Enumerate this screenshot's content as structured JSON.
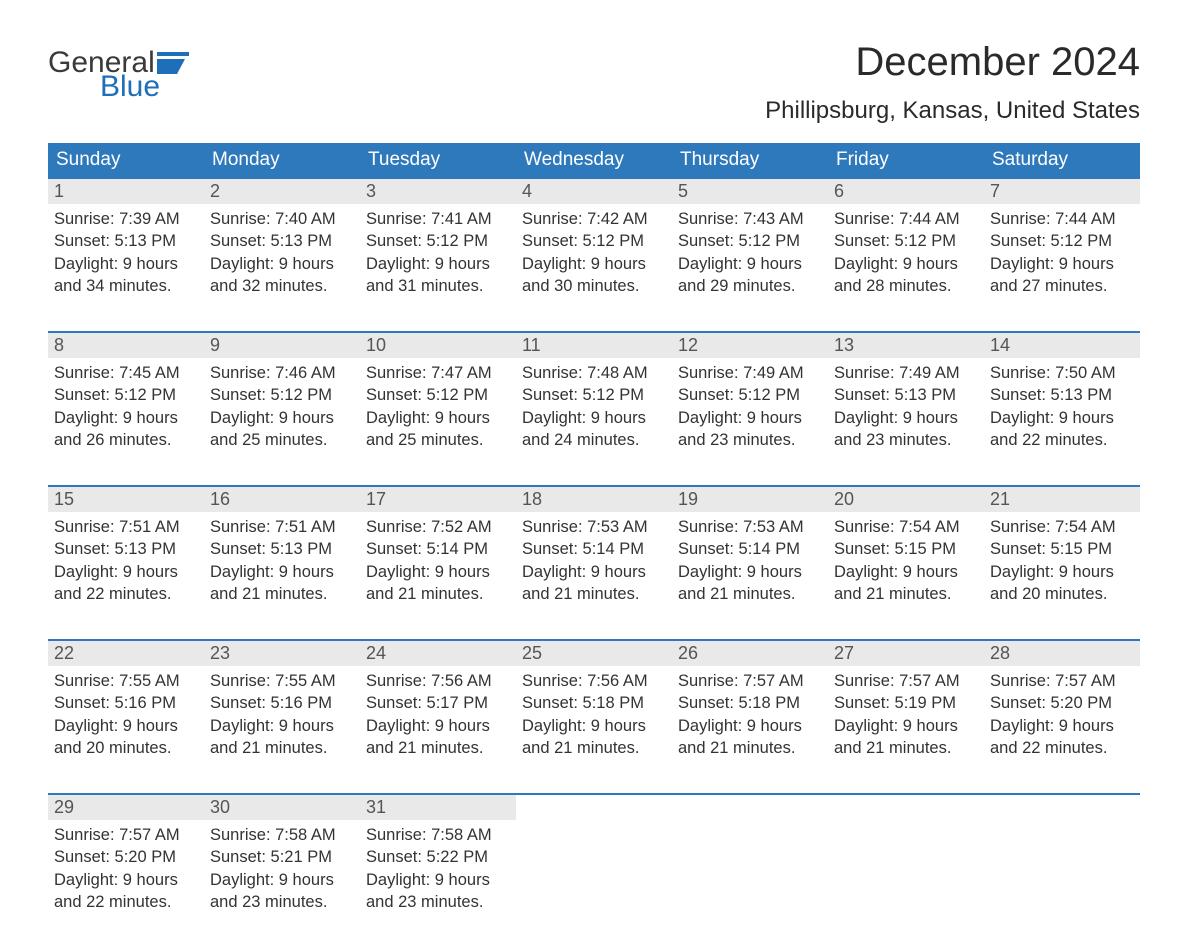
{
  "colors": {
    "header_bg": "#2e78bc",
    "header_text": "#ffffff",
    "daynum_bg": "#e9e9e9",
    "daynum_text": "#555555",
    "body_text": "#333333",
    "accent": "#1c6fb8",
    "page_bg": "#ffffff"
  },
  "typography": {
    "month_title_fontsize": 40,
    "location_fontsize": 24,
    "th_fontsize": 19,
    "daynum_fontsize": 18,
    "detail_fontsize": 16.5,
    "logo_fontsize": 30
  },
  "logo": {
    "line1": "General",
    "line2": "Blue"
  },
  "title": "December 2024",
  "location": "Phillipsburg, Kansas, United States",
  "weekdays": [
    "Sunday",
    "Monday",
    "Tuesday",
    "Wednesday",
    "Thursday",
    "Friday",
    "Saturday"
  ],
  "labels": {
    "sunrise": "Sunrise: ",
    "sunset": "Sunset: ",
    "daylight": "Daylight: "
  },
  "weeks": [
    [
      {
        "day": "1",
        "sunrise": "7:39 AM",
        "sunset": "5:13 PM",
        "daylight": "9 hours and 34 minutes."
      },
      {
        "day": "2",
        "sunrise": "7:40 AM",
        "sunset": "5:13 PM",
        "daylight": "9 hours and 32 minutes."
      },
      {
        "day": "3",
        "sunrise": "7:41 AM",
        "sunset": "5:12 PM",
        "daylight": "9 hours and 31 minutes."
      },
      {
        "day": "4",
        "sunrise": "7:42 AM",
        "sunset": "5:12 PM",
        "daylight": "9 hours and 30 minutes."
      },
      {
        "day": "5",
        "sunrise": "7:43 AM",
        "sunset": "5:12 PM",
        "daylight": "9 hours and 29 minutes."
      },
      {
        "day": "6",
        "sunrise": "7:44 AM",
        "sunset": "5:12 PM",
        "daylight": "9 hours and 28 minutes."
      },
      {
        "day": "7",
        "sunrise": "7:44 AM",
        "sunset": "5:12 PM",
        "daylight": "9 hours and 27 minutes."
      }
    ],
    [
      {
        "day": "8",
        "sunrise": "7:45 AM",
        "sunset": "5:12 PM",
        "daylight": "9 hours and 26 minutes."
      },
      {
        "day": "9",
        "sunrise": "7:46 AM",
        "sunset": "5:12 PM",
        "daylight": "9 hours and 25 minutes."
      },
      {
        "day": "10",
        "sunrise": "7:47 AM",
        "sunset": "5:12 PM",
        "daylight": "9 hours and 25 minutes."
      },
      {
        "day": "11",
        "sunrise": "7:48 AM",
        "sunset": "5:12 PM",
        "daylight": "9 hours and 24 minutes."
      },
      {
        "day": "12",
        "sunrise": "7:49 AM",
        "sunset": "5:12 PM",
        "daylight": "9 hours and 23 minutes."
      },
      {
        "day": "13",
        "sunrise": "7:49 AM",
        "sunset": "5:13 PM",
        "daylight": "9 hours and 23 minutes."
      },
      {
        "day": "14",
        "sunrise": "7:50 AM",
        "sunset": "5:13 PM",
        "daylight": "9 hours and 22 minutes."
      }
    ],
    [
      {
        "day": "15",
        "sunrise": "7:51 AM",
        "sunset": "5:13 PM",
        "daylight": "9 hours and 22 minutes."
      },
      {
        "day": "16",
        "sunrise": "7:51 AM",
        "sunset": "5:13 PM",
        "daylight": "9 hours and 21 minutes."
      },
      {
        "day": "17",
        "sunrise": "7:52 AM",
        "sunset": "5:14 PM",
        "daylight": "9 hours and 21 minutes."
      },
      {
        "day": "18",
        "sunrise": "7:53 AM",
        "sunset": "5:14 PM",
        "daylight": "9 hours and 21 minutes."
      },
      {
        "day": "19",
        "sunrise": "7:53 AM",
        "sunset": "5:14 PM",
        "daylight": "9 hours and 21 minutes."
      },
      {
        "day": "20",
        "sunrise": "7:54 AM",
        "sunset": "5:15 PM",
        "daylight": "9 hours and 21 minutes."
      },
      {
        "day": "21",
        "sunrise": "7:54 AM",
        "sunset": "5:15 PM",
        "daylight": "9 hours and 20 minutes."
      }
    ],
    [
      {
        "day": "22",
        "sunrise": "7:55 AM",
        "sunset": "5:16 PM",
        "daylight": "9 hours and 20 minutes."
      },
      {
        "day": "23",
        "sunrise": "7:55 AM",
        "sunset": "5:16 PM",
        "daylight": "9 hours and 21 minutes."
      },
      {
        "day": "24",
        "sunrise": "7:56 AM",
        "sunset": "5:17 PM",
        "daylight": "9 hours and 21 minutes."
      },
      {
        "day": "25",
        "sunrise": "7:56 AM",
        "sunset": "5:18 PM",
        "daylight": "9 hours and 21 minutes."
      },
      {
        "day": "26",
        "sunrise": "7:57 AM",
        "sunset": "5:18 PM",
        "daylight": "9 hours and 21 minutes."
      },
      {
        "day": "27",
        "sunrise": "7:57 AM",
        "sunset": "5:19 PM",
        "daylight": "9 hours and 21 minutes."
      },
      {
        "day": "28",
        "sunrise": "7:57 AM",
        "sunset": "5:20 PM",
        "daylight": "9 hours and 22 minutes."
      }
    ],
    [
      {
        "day": "29",
        "sunrise": "7:57 AM",
        "sunset": "5:20 PM",
        "daylight": "9 hours and 22 minutes."
      },
      {
        "day": "30",
        "sunrise": "7:58 AM",
        "sunset": "5:21 PM",
        "daylight": "9 hours and 23 minutes."
      },
      {
        "day": "31",
        "sunrise": "7:58 AM",
        "sunset": "5:22 PM",
        "daylight": "9 hours and 23 minutes."
      },
      null,
      null,
      null,
      null
    ]
  ]
}
